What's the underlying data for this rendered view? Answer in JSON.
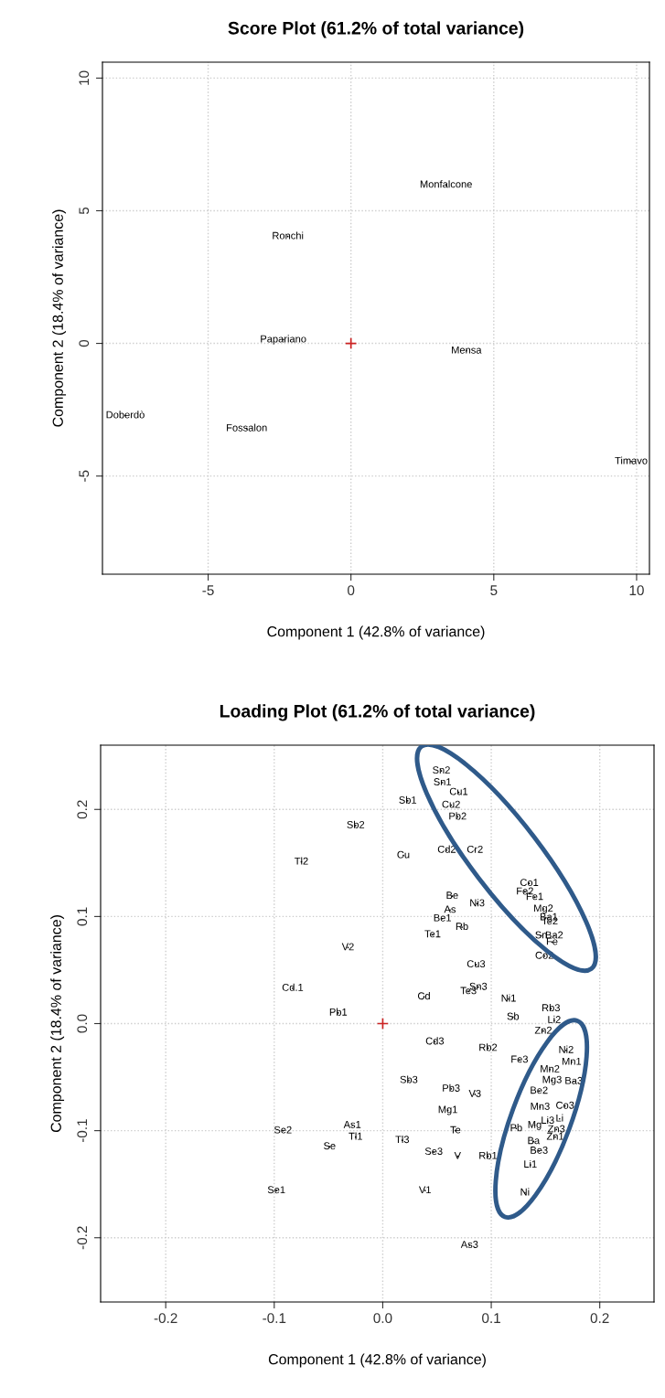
{
  "chart_data": [
    {
      "type": "scatter",
      "title": "Score Plot (61.2% of total variance)",
      "xlabel": "Component 1 (42.8% of variance)",
      "ylabel": "Component 2 (18.4% of variance)",
      "xlim": [
        -8.7,
        10.45
      ],
      "ylim": [
        -8.7,
        10.6
      ],
      "xticks": [
        -5,
        0,
        5,
        10
      ],
      "yticks": [
        -5,
        0,
        5,
        10
      ],
      "grid": true,
      "legend": false,
      "series": [
        {
          "marker": "none",
          "color": "#000000",
          "x": [
            3.33,
            -2.21,
            -2.37,
            4.04,
            -7.9,
            -3.65,
            9.81
          ],
          "values": [
            5.97,
            4.03,
            0.14,
            -0.28,
            -2.72,
            -3.21,
            -4.45
          ],
          "value_labels": [
            "Monfalcone",
            "Ronchi",
            "Papariano",
            "Mensa",
            "Doberdò",
            "Fossalon",
            "Timavo"
          ]
        },
        {
          "marker": "cross",
          "color": "#cc2222",
          "x": [
            0
          ],
          "values": [
            0
          ]
        }
      ]
    },
    {
      "type": "scatter",
      "title": "Loading Plot (61.2% of total variance)",
      "xlabel": "Component 1 (42.8% of variance)",
      "ylabel": "Component 2 (18.4% of variance)",
      "xlim": [
        -0.26,
        0.25
      ],
      "ylim": [
        -0.26,
        0.26
      ],
      "xticks": [
        {
          "value": -0.2,
          "label": "-0.2"
        },
        {
          "value": -0.1,
          "label": "-0.1"
        },
        {
          "value": 0.0,
          "label": "0.0"
        },
        {
          "value": 0.1,
          "label": "0.1"
        },
        {
          "value": 0.2,
          "label": "0.2"
        }
      ],
      "yticks": [
        {
          "value": -0.2,
          "label": "-0.2"
        },
        {
          "value": -0.1,
          "label": "-0.1"
        },
        {
          "value": 0.0,
          "label": "0.0"
        },
        {
          "value": 0.1,
          "label": "0.1"
        },
        {
          "value": 0.2,
          "label": "0.2"
        }
      ],
      "grid": true,
      "legend": false,
      "series": [
        {
          "marker": "none",
          "color": "#000000",
          "value_labels": [
            "Sn2",
            "Sn1",
            "Cu1",
            "Cu2",
            "Pb2",
            "Sb1",
            "Cu",
            "Cd2",
            "Cr2",
            "Co1",
            "Fe2",
            "Fe1",
            "Mg2",
            "Be",
            "As",
            "Be1",
            "Rb",
            "Te1",
            "Ni3",
            "Ba1",
            "Te2",
            "Sn",
            "Ba2",
            "Fe",
            "Co2",
            "Sb2",
            "Tl2",
            "V2",
            "Cd.1",
            "Cd",
            "Pb1",
            "Cu3",
            "Sn3",
            "Te3",
            "Ni1",
            "Sb",
            "Rb3",
            "Li2",
            "Zn2",
            "Rb2",
            "Fe3",
            "Ni2",
            "Mn1",
            "Mn2",
            "Mg3",
            "Ba3",
            "Be2",
            "Mn3",
            "Co3",
            "Li",
            "Li3",
            "Mg",
            "Zn3",
            "Pb",
            "Zn1",
            "Ba",
            "Be3",
            "Li1",
            "Ni",
            "As3",
            "Rb1",
            "Cd3",
            "Sb3",
            "Pb3",
            "V3",
            "Mg1",
            "Te",
            "Se2",
            "As1",
            "Tl1",
            "Se",
            "Tl3",
            "Se3",
            "V",
            "Se1",
            "V1"
          ],
          "x": [
            0.054,
            0.055,
            0.07,
            0.063,
            0.069,
            0.023,
            0.019,
            0.059,
            0.085,
            0.135,
            0.131,
            0.14,
            0.148,
            0.064,
            0.062,
            0.055,
            0.073,
            0.046,
            0.087,
            0.153,
            0.154,
            0.146,
            0.158,
            0.156,
            0.149,
            -0.025,
            -0.075,
            -0.032,
            -0.083,
            0.038,
            -0.041,
            0.086,
            0.088,
            0.079,
            0.116,
            0.12,
            0.155,
            0.158,
            0.148,
            0.097,
            0.126,
            0.169,
            0.174,
            0.154,
            0.156,
            0.176,
            0.144,
            0.145,
            0.168,
            0.163,
            0.152,
            0.14,
            0.16,
            0.123,
            0.159,
            0.139,
            0.144,
            0.136,
            0.131,
            0.08,
            0.097,
            0.048,
            0.024,
            0.063,
            0.085,
            0.06,
            0.067,
            -0.092,
            -0.028,
            -0.025,
            -0.049,
            0.018,
            0.047,
            0.069,
            -0.098,
            0.039
          ],
          "values": [
            0.236,
            0.225,
            0.216,
            0.204,
            0.193,
            0.208,
            0.157,
            0.162,
            0.162,
            0.131,
            0.123,
            0.118,
            0.107,
            0.119,
            0.106,
            0.098,
            0.09,
            0.083,
            0.112,
            0.099,
            0.095,
            0.082,
            0.082,
            0.076,
            0.063,
            0.185,
            0.151,
            0.071,
            0.033,
            0.025,
            0.01,
            0.055,
            0.034,
            0.03,
            0.023,
            0.006,
            0.014,
            0.003,
            -0.007,
            -0.023,
            -0.034,
            -0.025,
            -0.036,
            -0.043,
            -0.053,
            -0.054,
            -0.063,
            -0.078,
            -0.077,
            -0.089,
            -0.091,
            -0.095,
            -0.099,
            -0.098,
            -0.106,
            -0.11,
            -0.119,
            -0.132,
            -0.158,
            -0.207,
            -0.124,
            -0.017,
            -0.053,
            -0.061,
            -0.066,
            -0.081,
            -0.1,
            -0.1,
            -0.095,
            -0.106,
            -0.115,
            -0.109,
            -0.12,
            -0.124,
            -0.156,
            -0.156
          ]
        },
        {
          "marker": "cross",
          "color": "#cc2222",
          "x": [
            0
          ],
          "values": [
            0
          ]
        }
      ]
    }
  ]
}
